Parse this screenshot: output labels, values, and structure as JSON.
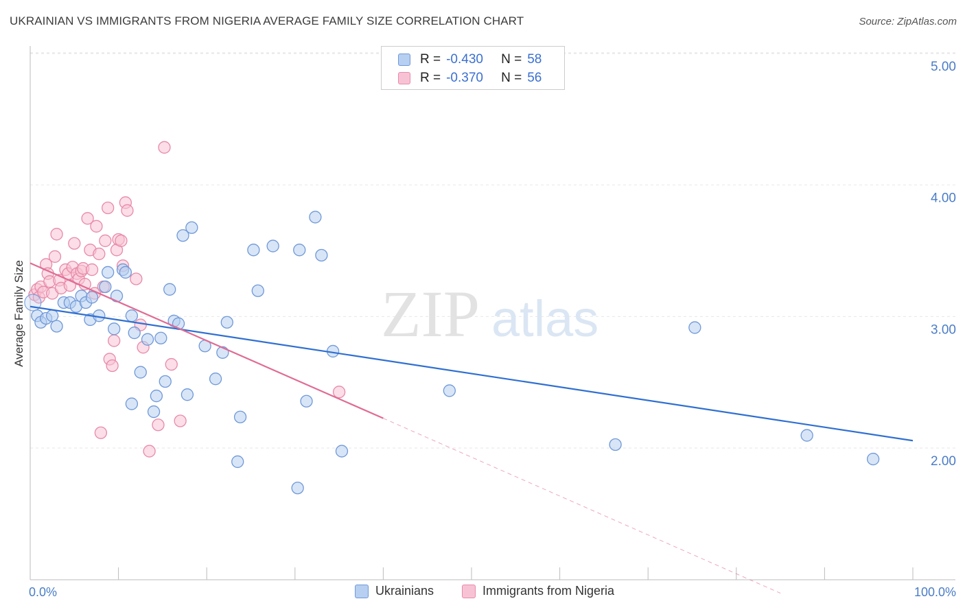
{
  "title": "UKRAINIAN VS IMMIGRANTS FROM NIGERIA AVERAGE FAMILY SIZE CORRELATION CHART",
  "source": "Source: ZipAtlas.com",
  "watermark": {
    "zip": "ZIP",
    "atlas": "atlas"
  },
  "legend": {
    "r_label": "R =",
    "n_label": "N =",
    "rows": [
      {
        "r": "-0.430",
        "n": "58",
        "color": "#4a7cc7"
      },
      {
        "r": "-0.370",
        "n": "56",
        "color": "#e06b94"
      }
    ]
  },
  "bottom_legend": [
    "Ukrainians",
    "Immigrants from Nigeria"
  ],
  "colors": {
    "blue_fill": "#b7cff0",
    "blue_stroke": "#6f98d8",
    "blue_line": "#2f6fd1",
    "pink_fill": "#f7c3d4",
    "pink_stroke": "#e889a8",
    "pink_line": "#e06b94",
    "tick_text": "#4a7cc7"
  },
  "chart_data": {
    "type": "scatter",
    "title": "UKRAINIAN VS IMMIGRANTS FROM NIGERIA AVERAGE FAMILY SIZE CORRELATION CHART",
    "xlabel": "",
    "ylabel": "Average Family Size",
    "xlim": [
      0,
      100
    ],
    "ylim": [
      1.0,
      5.1
    ],
    "x_tick_labels": [
      "0.0%",
      "100.0%"
    ],
    "y_ticks": [
      2.0,
      3.0,
      4.0,
      5.0
    ],
    "y_tick_labels": [
      "2.00",
      "3.00",
      "4.00",
      "5.00"
    ],
    "grid": true,
    "legend_position": "top-center",
    "series": [
      {
        "name": "Ukrainians",
        "stats": {
          "R": -0.43,
          "N": 58
        },
        "trend": {
          "x": [
            0,
            100
          ],
          "y": [
            3.17,
            2.15
          ]
        },
        "points": [
          [
            0.8,
            3.1
          ],
          [
            1.2,
            3.05
          ],
          [
            1.8,
            3.08
          ],
          [
            2.5,
            3.1
          ],
          [
            3.0,
            3.02
          ],
          [
            3.8,
            3.2
          ],
          [
            4.5,
            3.2
          ],
          [
            5.2,
            3.17
          ],
          [
            5.8,
            3.25
          ],
          [
            6.3,
            3.2
          ],
          [
            6.8,
            3.07
          ],
          [
            7.0,
            3.24
          ],
          [
            7.8,
            3.1
          ],
          [
            8.5,
            3.32
          ],
          [
            8.8,
            3.43
          ],
          [
            9.5,
            3.0
          ],
          [
            9.8,
            3.25
          ],
          [
            10.5,
            3.45
          ],
          [
            10.8,
            3.43
          ],
          [
            11.5,
            3.1
          ],
          [
            11.8,
            2.97
          ],
          [
            11.5,
            2.43
          ],
          [
            12.5,
            2.67
          ],
          [
            13.3,
            2.92
          ],
          [
            14.0,
            2.37
          ],
          [
            14.3,
            2.49
          ],
          [
            14.8,
            2.93
          ],
          [
            15.3,
            2.6
          ],
          [
            15.8,
            3.3
          ],
          [
            16.3,
            3.06
          ],
          [
            16.8,
            3.04
          ],
          [
            17.3,
            3.71
          ],
          [
            17.8,
            2.5
          ],
          [
            18.3,
            3.77
          ],
          [
            19.8,
            2.87
          ],
          [
            21.0,
            2.62
          ],
          [
            21.8,
            2.82
          ],
          [
            22.3,
            3.05
          ],
          [
            23.5,
            1.99
          ],
          [
            23.8,
            2.33
          ],
          [
            25.3,
            3.6
          ],
          [
            25.8,
            3.29
          ],
          [
            27.5,
            3.63
          ],
          [
            30.3,
            1.79
          ],
          [
            30.5,
            3.6
          ],
          [
            31.3,
            2.45
          ],
          [
            32.3,
            3.85
          ],
          [
            33.0,
            3.56
          ],
          [
            34.3,
            2.83
          ],
          [
            35.3,
            2.07
          ],
          [
            47.5,
            2.53
          ],
          [
            66.3,
            2.12
          ],
          [
            75.3,
            3.01
          ],
          [
            88.0,
            2.19
          ],
          [
            95.5,
            2.01
          ]
        ]
      },
      {
        "name": "Immigrants from Nigeria",
        "stats": {
          "R": -0.37,
          "N": 56
        },
        "trend": {
          "x": [
            0,
            40
          ],
          "y": [
            3.5,
            2.32
          ]
        },
        "trend_dashed": {
          "x": [
            40,
            85
          ],
          "y": [
            2.32,
            0.99
          ]
        },
        "points": [
          [
            0.5,
            3.26
          ],
          [
            0.8,
            3.3
          ],
          [
            1.0,
            3.24
          ],
          [
            1.2,
            3.32
          ],
          [
            1.5,
            3.28
          ],
          [
            1.8,
            3.49
          ],
          [
            2.0,
            3.42
          ],
          [
            2.2,
            3.36
          ],
          [
            2.5,
            3.27
          ],
          [
            2.8,
            3.55
          ],
          [
            3.0,
            3.72
          ],
          [
            3.3,
            3.37
          ],
          [
            3.5,
            3.31
          ],
          [
            4.0,
            3.45
          ],
          [
            4.3,
            3.42
          ],
          [
            4.5,
            3.33
          ],
          [
            4.8,
            3.47
          ],
          [
            5.0,
            3.65
          ],
          [
            5.3,
            3.42
          ],
          [
            5.5,
            3.38
          ],
          [
            5.8,
            3.44
          ],
          [
            6.0,
            3.46
          ],
          [
            6.2,
            3.34
          ],
          [
            6.5,
            3.84
          ],
          [
            6.8,
            3.6
          ],
          [
            7.0,
            3.45
          ],
          [
            7.3,
            3.27
          ],
          [
            7.5,
            3.78
          ],
          [
            7.8,
            3.57
          ],
          [
            8.0,
            2.21
          ],
          [
            8.3,
            3.32
          ],
          [
            8.5,
            3.67
          ],
          [
            8.8,
            3.92
          ],
          [
            9.0,
            2.77
          ],
          [
            9.3,
            2.72
          ],
          [
            9.5,
            2.91
          ],
          [
            9.8,
            3.6
          ],
          [
            10.0,
            3.68
          ],
          [
            10.3,
            3.67
          ],
          [
            10.5,
            3.48
          ],
          [
            10.8,
            3.96
          ],
          [
            11.0,
            3.9
          ],
          [
            12.0,
            3.38
          ],
          [
            12.5,
            3.03
          ],
          [
            12.8,
            2.86
          ],
          [
            13.5,
            2.07
          ],
          [
            14.5,
            2.27
          ],
          [
            15.2,
            4.38
          ],
          [
            16.0,
            2.73
          ],
          [
            17.0,
            2.3
          ],
          [
            35.0,
            2.52
          ]
        ]
      }
    ]
  }
}
